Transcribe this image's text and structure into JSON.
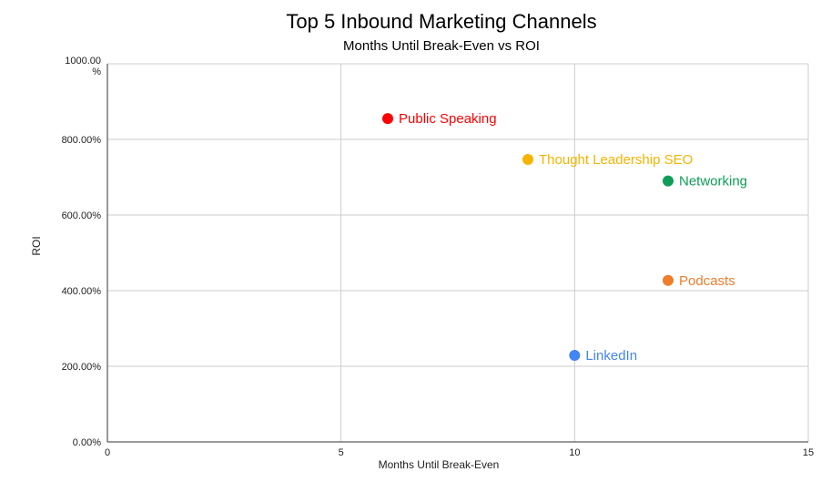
{
  "chart_data": {
    "type": "scatter",
    "title": "Top 5 Inbound Marketing Channels",
    "subtitle": "Months Until Break-Even vs ROI",
    "xlabel": "Months Until Break-Even",
    "ylabel": "ROI",
    "xlim": [
      0,
      15
    ],
    "ylim": [
      0,
      1000
    ],
    "x_ticks": [
      0,
      5,
      10,
      15
    ],
    "y_ticks": [
      0,
      200,
      400,
      600,
      800,
      1000
    ],
    "y_tick_labels": [
      "0.00%",
      "200.00%",
      "400.00%",
      "600.00%",
      "800.00%",
      "1000.00 %"
    ],
    "grid": true,
    "legend": "none",
    "points": [
      {
        "label": "Public Speaking",
        "x": 6,
        "y": 855,
        "color": "#ff0000"
      },
      {
        "label": "Thought Leadership SEO",
        "x": 9,
        "y": 747,
        "color": "#f4b400"
      },
      {
        "label": "Networking",
        "x": 12,
        "y": 690,
        "color": "#0f9d58"
      },
      {
        "label": "Podcasts",
        "x": 12,
        "y": 427,
        "color": "#f07d2c"
      },
      {
        "label": "LinkedIn",
        "x": 10,
        "y": 229,
        "color": "#4285f4"
      }
    ]
  }
}
